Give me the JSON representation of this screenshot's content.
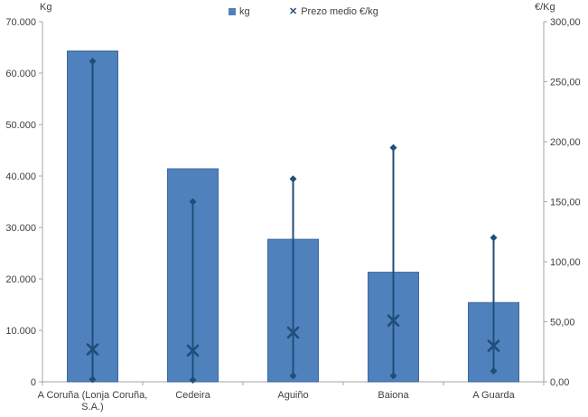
{
  "window": {
    "background": "#FFFFFF"
  },
  "chart_data": {
    "type": "bar",
    "title": "",
    "grid": "off",
    "categories": [
      "A Coruña (Lonja Coruña, S.A.)",
      "Cedeira",
      "Aguiño",
      "Baiona",
      "A Guarda"
    ],
    "category_label_lines": [
      [
        "A Coruña (Lonja Coruña,",
        "S.A.)"
      ],
      [
        "Cedeira"
      ],
      [
        "Aguiño"
      ],
      [
        "Baiona"
      ],
      [
        "A Guarda"
      ]
    ],
    "left_axis": {
      "title": "Kg",
      "min": 0,
      "max": 70000,
      "step": 10000,
      "tick_labels": [
        "70.000",
        "60.000",
        "50.000",
        "40.000",
        "30.000",
        "20.000",
        "10.000",
        "0"
      ]
    },
    "right_axis": {
      "title": "€/Kg",
      "min": 0,
      "max": 300,
      "step": 50,
      "tick_labels": [
        "300,00",
        "250,00",
        "200,00",
        "150,00",
        "100,00",
        "50,00",
        "0,00"
      ]
    },
    "series": [
      {
        "name": "kg",
        "type": "bar",
        "axis": "left",
        "color": "#4F81BD",
        "border_color": "#3E689E",
        "values": [
          64300,
          41400,
          27700,
          21300,
          15400
        ]
      },
      {
        "name": "Prezo medio €/kg",
        "type": "hilo-x",
        "axis": "right",
        "color": "#1F4E79",
        "mean": [
          27,
          26,
          41,
          51,
          30
        ],
        "max": [
          267,
          150,
          169,
          195,
          120
        ],
        "min": [
          2,
          1.5,
          5,
          5,
          9
        ]
      }
    ],
    "legend": {
      "position": "top",
      "items": [
        {
          "label": "kg",
          "marker": "square"
        },
        {
          "label": "Prezo medio €/kg",
          "marker": "x"
        }
      ]
    },
    "axis_line_color": "#A6A6A6",
    "text_color": "#404040"
  }
}
